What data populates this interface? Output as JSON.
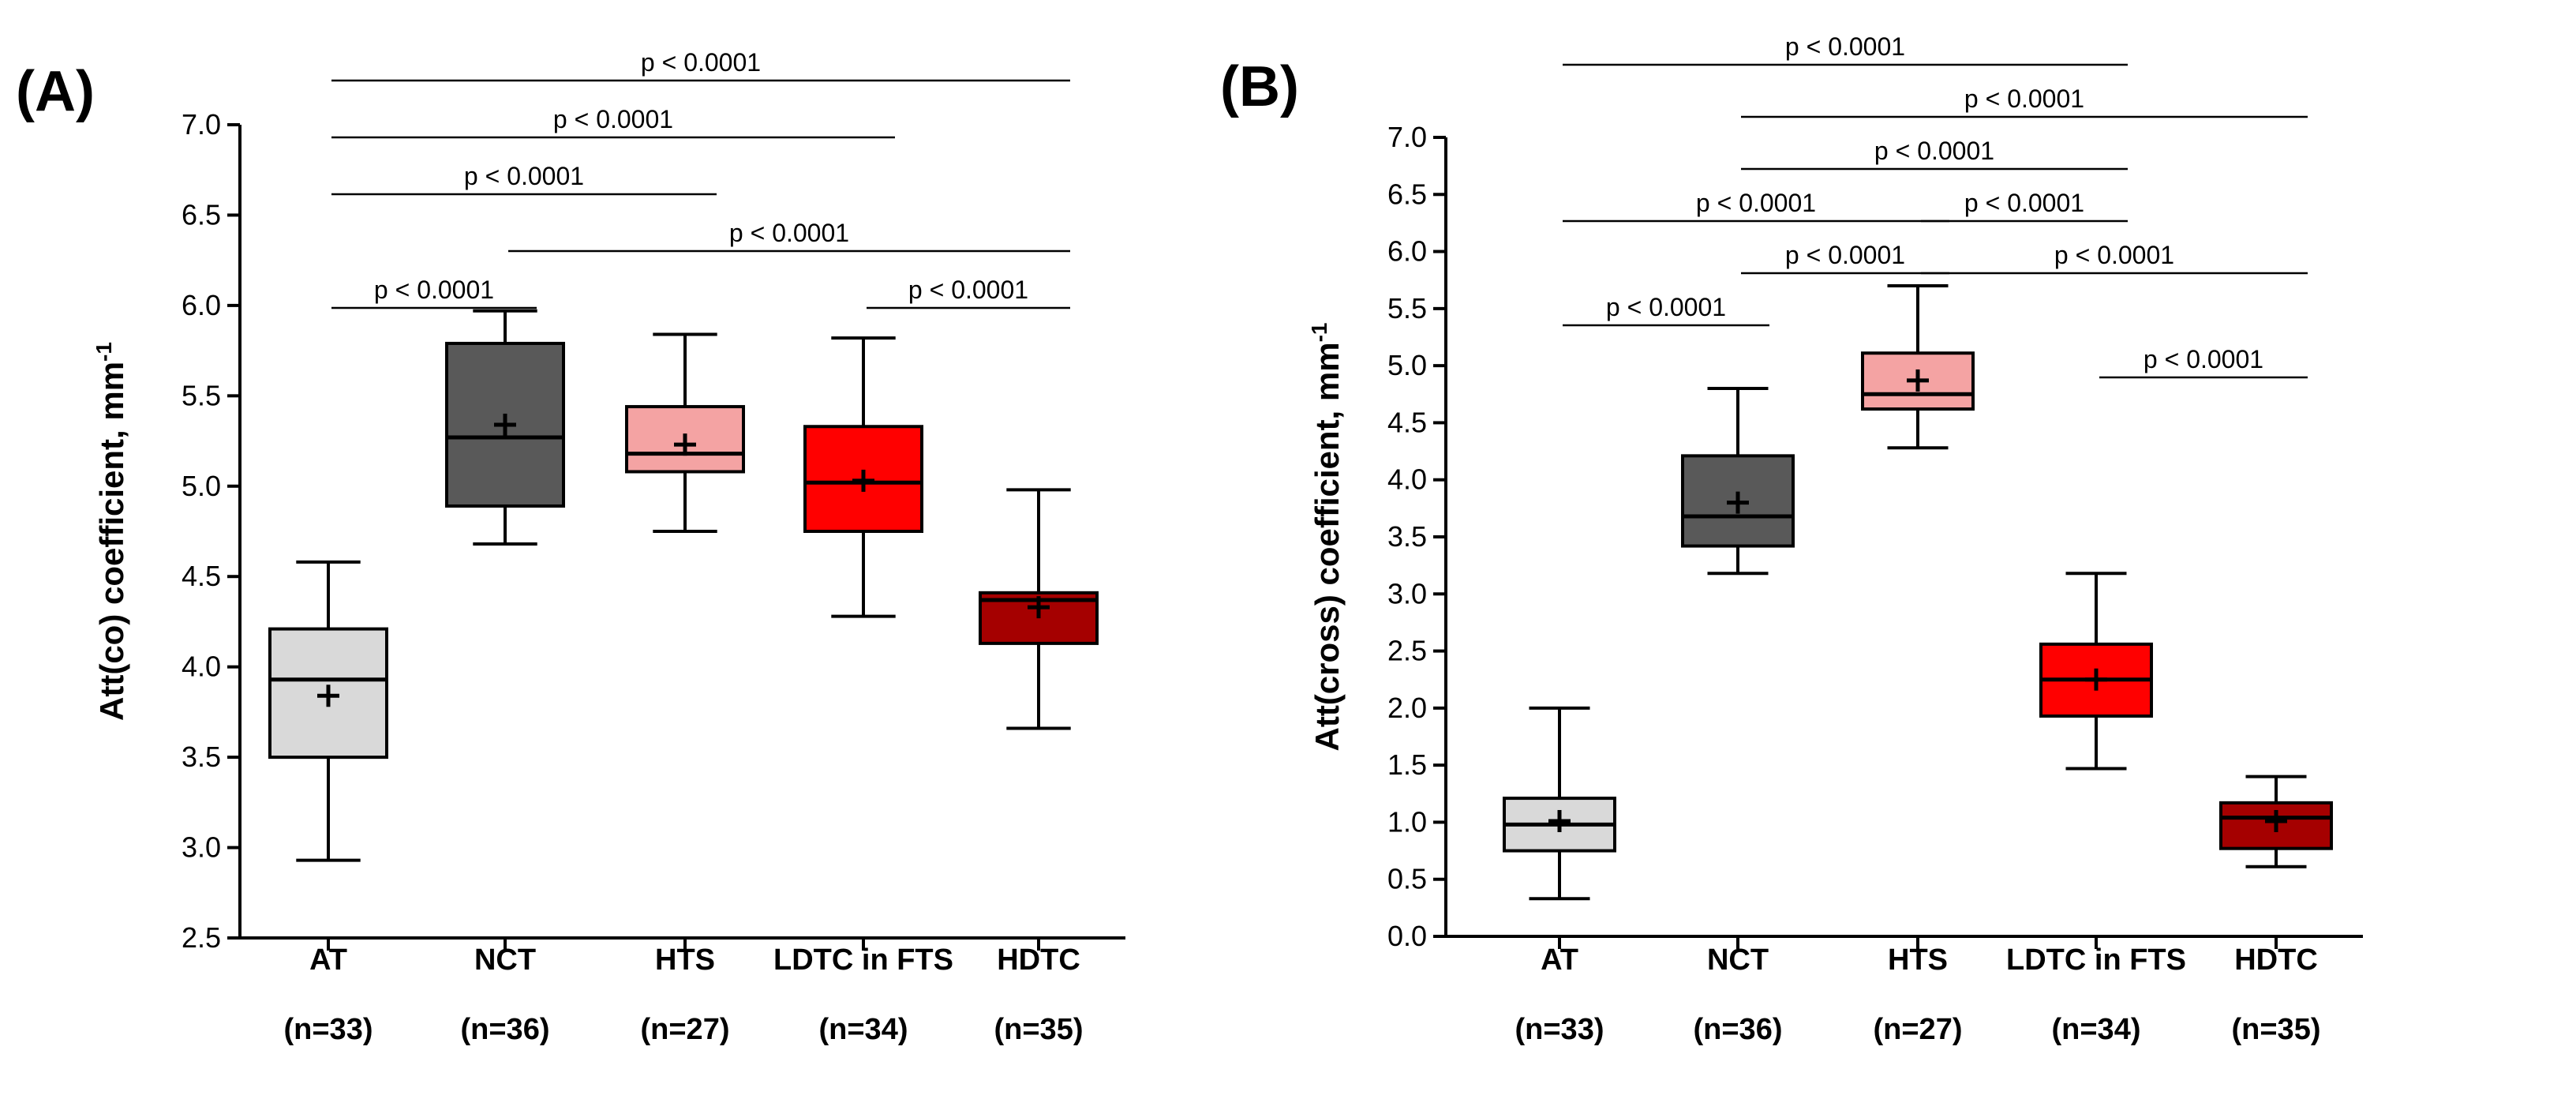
{
  "chart_data": [
    {
      "type": "box",
      "panel_label": "(A)",
      "ylabel": "Att(co) coefficient, mm",
      "ylabel_sup": "-1",
      "ylim": [
        2.5,
        7.0
      ],
      "yticks": [
        2.5,
        3.0,
        3.5,
        4.0,
        4.5,
        5.0,
        5.5,
        6.0,
        6.5,
        7.0
      ],
      "ytick_labels": [
        "2.5",
        "3.0",
        "3.5",
        "4.0",
        "4.5",
        "5.0",
        "5.5",
        "6.0",
        "6.5",
        "7.0"
      ],
      "categories": [
        {
          "name": "AT",
          "n": "(n=33)"
        },
        {
          "name": "NCT",
          "n": "(n=36)"
        },
        {
          "name": "HTS",
          "n": "(n=27)"
        },
        {
          "name": "LDTC in FTS",
          "n": "(n=34)"
        },
        {
          "name": "HDTC",
          "n": "(n=35)"
        }
      ],
      "boxes": [
        {
          "min": 2.93,
          "q1": 3.5,
          "median": 3.93,
          "q3": 4.21,
          "max": 4.58,
          "mean": 3.84
        },
        {
          "min": 4.68,
          "q1": 4.89,
          "median": 5.27,
          "q3": 5.79,
          "max": 5.97,
          "mean": 5.34
        },
        {
          "min": 4.75,
          "q1": 5.08,
          "median": 5.18,
          "q3": 5.44,
          "max": 5.84,
          "mean": 5.23
        },
        {
          "min": 4.28,
          "q1": 4.75,
          "median": 5.02,
          "q3": 5.33,
          "max": 5.82,
          "mean": 5.03
        },
        {
          "min": 3.66,
          "q1": 4.13,
          "median": 4.37,
          "q3": 4.41,
          "max": 4.98,
          "mean": 4.33
        }
      ],
      "comparisons": [
        {
          "from": 0,
          "to": 4,
          "label": "p < 0.0001"
        },
        {
          "from": 0,
          "to": 3,
          "label": "p < 0.0001"
        },
        {
          "from": 0,
          "to": 2,
          "label": "p < 0.0001"
        },
        {
          "from": 1,
          "to": 4,
          "label": "p < 0.0001"
        },
        {
          "from": 0,
          "to": 1,
          "label": "p < 0.0001"
        },
        {
          "from": 3,
          "to": 4,
          "label": "p < 0.0001"
        }
      ]
    },
    {
      "type": "box",
      "panel_label": "(B)",
      "ylabel": "Att(cross) coefficient, mm",
      "ylabel_sup": "-1",
      "ylim": [
        0.0,
        7.0
      ],
      "yticks": [
        0.0,
        0.5,
        1.0,
        1.5,
        2.0,
        2.5,
        3.0,
        3.5,
        4.0,
        4.5,
        5.0,
        5.5,
        6.0,
        6.5,
        7.0
      ],
      "ytick_labels": [
        "0.0",
        "0.5",
        "1.0",
        "1.5",
        "2.0",
        "2.5",
        "3.0",
        "3.5",
        "4.0",
        "4.5",
        "5.0",
        "5.5",
        "6.0",
        "6.5",
        "7.0"
      ],
      "categories": [
        {
          "name": "AT",
          "n": "(n=33)"
        },
        {
          "name": "NCT",
          "n": "(n=36)"
        },
        {
          "name": "HTS",
          "n": "(n=27)"
        },
        {
          "name": "LDTC in FTS",
          "n": "(n=34)"
        },
        {
          "name": "HDTC",
          "n": "(n=35)"
        }
      ],
      "boxes": [
        {
          "min": 0.33,
          "q1": 0.75,
          "median": 0.98,
          "q3": 1.21,
          "max": 2.0,
          "mean": 1.01
        },
        {
          "min": 3.18,
          "q1": 3.42,
          "median": 3.68,
          "q3": 4.21,
          "max": 4.8,
          "mean": 3.8
        },
        {
          "min": 4.28,
          "q1": 4.62,
          "median": 4.75,
          "q3": 5.11,
          "max": 5.7,
          "mean": 4.87
        },
        {
          "min": 1.47,
          "q1": 1.93,
          "median": 2.25,
          "q3": 2.56,
          "max": 3.18,
          "mean": 2.25
        },
        {
          "min": 0.61,
          "q1": 0.77,
          "median": 1.04,
          "q3": 1.17,
          "max": 1.4,
          "mean": 1.01
        }
      ],
      "comparisons": [
        {
          "from": 0,
          "to": 3,
          "label": "p < 0.0001"
        },
        {
          "from": 1,
          "to": 4,
          "label": "p < 0.0001"
        },
        {
          "from": 1,
          "to": 3,
          "label": "p < 0.0001"
        },
        {
          "from": 0,
          "to": 2,
          "label": "p < 0.0001"
        },
        {
          "from": 2,
          "to": 3,
          "label": "p < 0.0001"
        },
        {
          "from": 1,
          "to": 2,
          "label": "p < 0.0001"
        },
        {
          "from": 2,
          "to": 4,
          "label": "p < 0.0001"
        },
        {
          "from": 0,
          "to": 1,
          "label": "p < 0.0001"
        },
        {
          "from": 3,
          "to": 4,
          "label": "p < 0.0001"
        }
      ]
    }
  ],
  "colors": {
    "axis": "#000000",
    "box_fills": [
      "#d9d9d9",
      "#595959",
      "#f4a3a3",
      "#ff0000",
      "#a50000"
    ]
  }
}
